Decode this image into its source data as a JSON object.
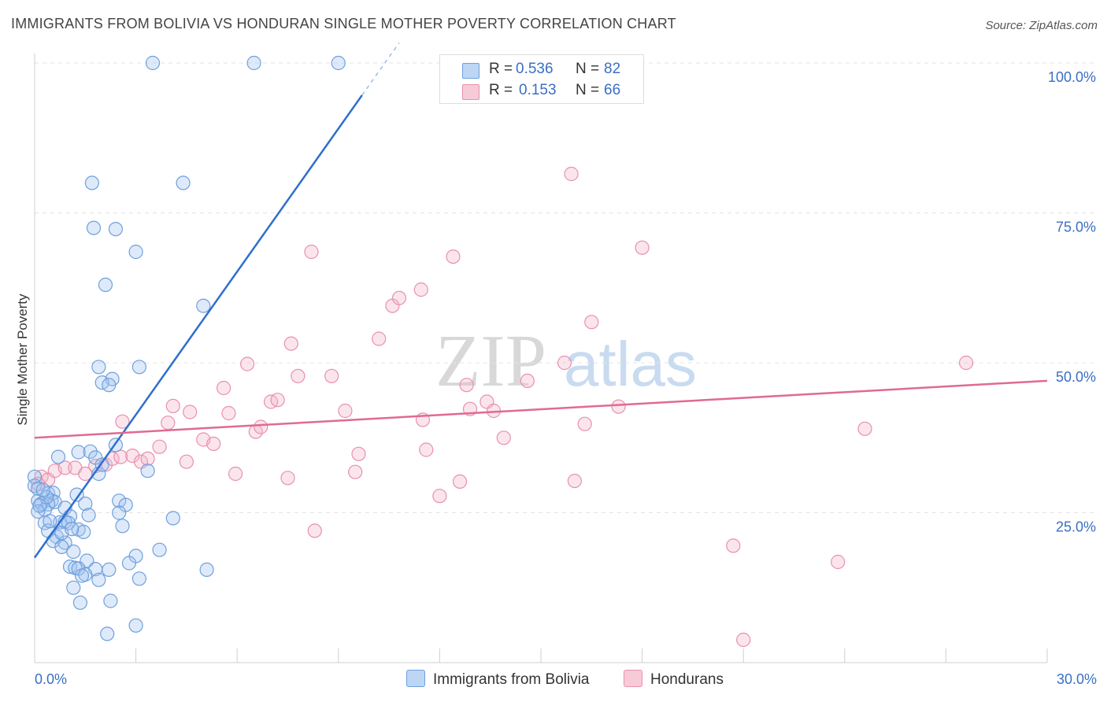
{
  "title": "IMMIGRANTS FROM BOLIVIA VS HONDURAN SINGLE MOTHER POVERTY CORRELATION CHART",
  "source": "Source: ZipAtlas.com",
  "watermark": {
    "zip": "ZIP",
    "atlas": "atlas"
  },
  "colors": {
    "bolivia_fill": "rgba(160,196,240,0.35)",
    "bolivia_stroke": "#6fa0dc",
    "bolivia_line": "#2f6fcc",
    "honduras_fill": "rgba(244,180,200,0.35)",
    "honduras_stroke": "#e890ae",
    "honduras_line": "#e06a93",
    "tick_label": "#3a6fc4",
    "grid": "#e3e3e3"
  },
  "legend": {
    "rows": [
      {
        "r_label": "R =",
        "r_value": "0.536",
        "n_label": "N =",
        "n_value": "82"
      },
      {
        "r_label": "R =",
        "r_value": "0.153",
        "n_label": "N =",
        "n_value": "66"
      }
    ]
  },
  "bottom_legend": {
    "bolivia": "Immigrants from Bolivia",
    "honduras": "Hondurans"
  },
  "chart_data": {
    "type": "scatter",
    "title": "IMMIGRANTS FROM BOLIVIA VS HONDURAN SINGLE MOTHER POVERTY CORRELATION CHART",
    "xlabel": "",
    "ylabel": "Single Mother Poverty",
    "xlim": [
      0,
      30
    ],
    "ylim": [
      0,
      102
    ],
    "x_tick_labels": [
      "0.0%",
      "30.0%"
    ],
    "y_ticks": [
      25,
      50,
      75,
      100
    ],
    "y_tick_labels": [
      "25.0%",
      "50.0%",
      "75.0%",
      "100.0%"
    ],
    "grid": true,
    "legend_placement": "top-center",
    "series": [
      {
        "name": "Immigrants from Bolivia",
        "r": 0.536,
        "n": 82,
        "trend": {
          "x": [
            0,
            10.0
          ],
          "y": [
            17.5,
            97.0
          ],
          "solid_to_x": 10.0,
          "dashed_from_x": 9.7
        },
        "points": [
          [
            3.5,
            100
          ],
          [
            6.5,
            100
          ],
          [
            9.0,
            100
          ],
          [
            1.7,
            80
          ],
          [
            4.4,
            80
          ],
          [
            1.75,
            72.5
          ],
          [
            2.4,
            72.3
          ],
          [
            3.0,
            68.5
          ],
          [
            2.1,
            63
          ],
          [
            5.0,
            59.5
          ],
          [
            1.9,
            49.3
          ],
          [
            3.1,
            49.3
          ],
          [
            2.3,
            47.3
          ],
          [
            2.0,
            46.7
          ],
          [
            2.2,
            46.3
          ],
          [
            2.4,
            36.3
          ],
          [
            1.3,
            35.1
          ],
          [
            1.65,
            35.2
          ],
          [
            1.8,
            34.2
          ],
          [
            0.7,
            34.3
          ],
          [
            1.9,
            31.5
          ],
          [
            3.35,
            32
          ],
          [
            0.0,
            31
          ],
          [
            0.0,
            29.5
          ],
          [
            0.1,
            29
          ],
          [
            0.4,
            28.2
          ],
          [
            0.55,
            28.3
          ],
          [
            1.25,
            28
          ],
          [
            0.1,
            27
          ],
          [
            0.5,
            27
          ],
          [
            0.2,
            26.5
          ],
          [
            0.6,
            26.8
          ],
          [
            0.4,
            26.4
          ],
          [
            1.5,
            26.5
          ],
          [
            0.9,
            25.8
          ],
          [
            2.5,
            27
          ],
          [
            2.7,
            26.3
          ],
          [
            0.3,
            25.5
          ],
          [
            2.5,
            25
          ],
          [
            1.05,
            24.4
          ],
          [
            0.3,
            23.3
          ],
          [
            0.75,
            23.4
          ],
          [
            0.9,
            23.5
          ],
          [
            1.0,
            23.3
          ],
          [
            1.3,
            22.2
          ],
          [
            1.45,
            21.8
          ],
          [
            2.6,
            22.8
          ],
          [
            4.1,
            24.1
          ],
          [
            0.4,
            22
          ],
          [
            0.65,
            21
          ],
          [
            0.55,
            20.3
          ],
          [
            0.9,
            20
          ],
          [
            0.8,
            19.3
          ],
          [
            1.15,
            18.5
          ],
          [
            3.7,
            18.8
          ],
          [
            3.0,
            17.8
          ],
          [
            1.55,
            17
          ],
          [
            2.8,
            16.6
          ],
          [
            1.05,
            16
          ],
          [
            1.2,
            15.8
          ],
          [
            1.3,
            15.7
          ],
          [
            1.8,
            15.6
          ],
          [
            2.2,
            15.5
          ],
          [
            5.1,
            15.5
          ],
          [
            1.5,
            14.7
          ],
          [
            1.4,
            14.5
          ],
          [
            1.9,
            13.8
          ],
          [
            3.1,
            14
          ],
          [
            1.15,
            12.5
          ],
          [
            1.35,
            10
          ],
          [
            2.25,
            10.3
          ],
          [
            2.15,
            4.8
          ],
          [
            3.0,
            6.2
          ],
          [
            0.1,
            25.2
          ],
          [
            0.35,
            27.6
          ],
          [
            0.8,
            21.6
          ],
          [
            1.1,
            22.3
          ],
          [
            0.45,
            23.6
          ],
          [
            1.6,
            24.6
          ],
          [
            0.25,
            28.8
          ],
          [
            2.0,
            33.0
          ],
          [
            0.15,
            26.2
          ]
        ]
      },
      {
        "name": "Hondurans",
        "r": 0.153,
        "n": 66,
        "trend": {
          "x": [
            0,
            30
          ],
          "y": [
            37.5,
            47.0
          ]
        },
        "points": [
          [
            0.2,
            31
          ],
          [
            0.4,
            30.5
          ],
          [
            0.6,
            32
          ],
          [
            0.9,
            32.5
          ],
          [
            1.2,
            32.5
          ],
          [
            1.5,
            31.5
          ],
          [
            1.8,
            32.8
          ],
          [
            2.1,
            33
          ],
          [
            2.3,
            34
          ],
          [
            2.55,
            34.3
          ],
          [
            2.9,
            34.5
          ],
          [
            3.15,
            33.5
          ],
          [
            3.35,
            34
          ],
          [
            3.7,
            36
          ],
          [
            3.95,
            40
          ],
          [
            4.1,
            42.8
          ],
          [
            4.6,
            41.8
          ],
          [
            4.5,
            33.5
          ],
          [
            5.0,
            37.2
          ],
          [
            5.3,
            36.5
          ],
          [
            5.6,
            45.8
          ],
          [
            5.75,
            41.6
          ],
          [
            5.95,
            31.5
          ],
          [
            6.3,
            49.8
          ],
          [
            6.55,
            38.5
          ],
          [
            6.7,
            39.3
          ],
          [
            7.0,
            43.5
          ],
          [
            7.2,
            43.8
          ],
          [
            7.5,
            30.8
          ],
          [
            7.6,
            53.2
          ],
          [
            7.8,
            47.8
          ],
          [
            8.2,
            68.5
          ],
          [
            8.3,
            22
          ],
          [
            8.8,
            47.8
          ],
          [
            9.2,
            42
          ],
          [
            9.5,
            31.8
          ],
          [
            9.6,
            34.8
          ],
          [
            10.2,
            54
          ],
          [
            10.6,
            59.5
          ],
          [
            10.8,
            60.8
          ],
          [
            11.45,
            62.2
          ],
          [
            11.5,
            40.5
          ],
          [
            11.6,
            35.5
          ],
          [
            12.0,
            27.8
          ],
          [
            12.4,
            67.7
          ],
          [
            12.6,
            30.2
          ],
          [
            12.8,
            46.3
          ],
          [
            12.9,
            42.3
          ],
          [
            13.4,
            43.5
          ],
          [
            13.6,
            42
          ],
          [
            13.9,
            37.5
          ],
          [
            14.6,
            47
          ],
          [
            15.7,
            50
          ],
          [
            15.9,
            81.5
          ],
          [
            16.0,
            30.3
          ],
          [
            16.3,
            39.8
          ],
          [
            16.5,
            56.8
          ],
          [
            17.3,
            42.7
          ],
          [
            18.0,
            69.2
          ],
          [
            20.7,
            19.5
          ],
          [
            21.0,
            3.8
          ],
          [
            23.8,
            16.8
          ],
          [
            24.6,
            39
          ],
          [
            27.6,
            50
          ],
          [
            2.6,
            40.2
          ],
          [
            0.1,
            29.8
          ]
        ]
      }
    ]
  }
}
